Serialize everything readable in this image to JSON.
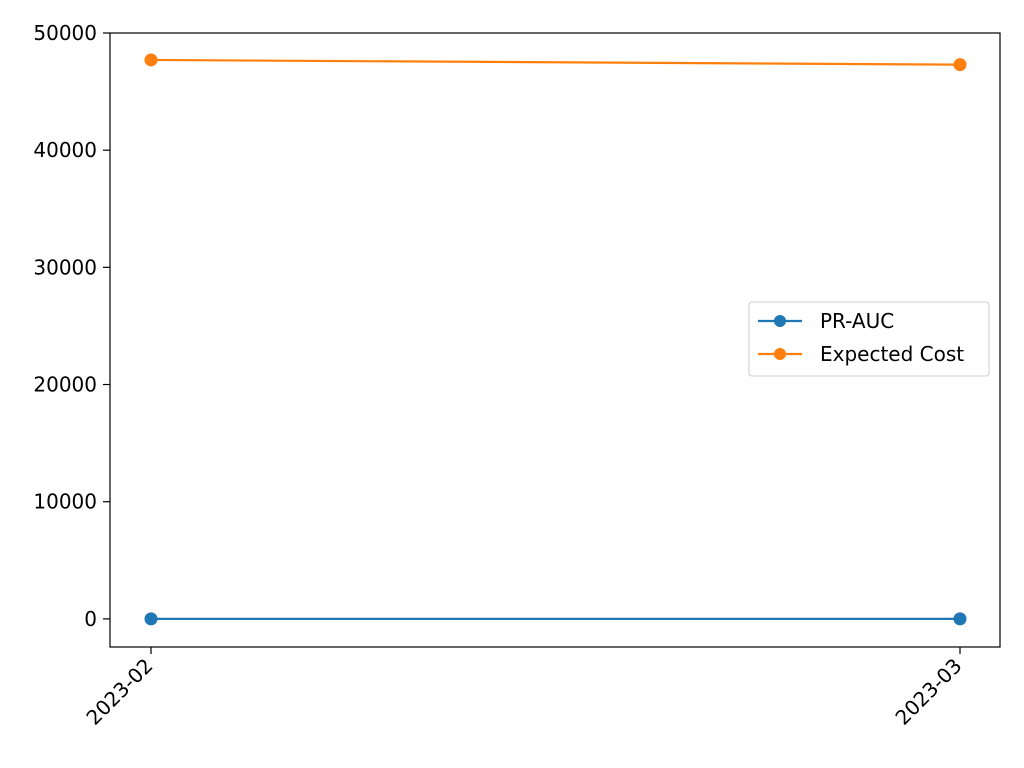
{
  "chart_data": {
    "type": "line",
    "title": "",
    "xlabel": "",
    "ylabel": "",
    "categories": [
      "2023-02",
      "2023-03"
    ],
    "ylim": [
      -2400,
      50000
    ],
    "yticks": [
      0,
      10000,
      20000,
      30000,
      40000,
      50000
    ],
    "ytick_labels": [
      "0",
      "10000",
      "20000",
      "30000",
      "40000",
      "50000"
    ],
    "grid": false,
    "legend_position": "center-right",
    "series": [
      {
        "name": "PR-AUC",
        "values": [
          0.1,
          0.1
        ],
        "color": "#1f77b4",
        "marker": "circle"
      },
      {
        "name": "Expected Cost",
        "values": [
          47700,
          47300
        ],
        "color": "#ff7f0e",
        "marker": "circle"
      }
    ]
  }
}
